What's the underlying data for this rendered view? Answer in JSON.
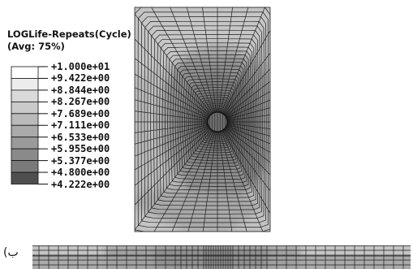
{
  "legend": {
    "title_line1": "LOGLife-Repeats(Cycle)",
    "title_line2": "(Avg: 75%)",
    "values": [
      "+1.000e+01",
      "+9.422e+00",
      "+8.844e+00",
      "+8.267e+00",
      "+7.689e+00",
      "+7.111e+00",
      "+6.533e+00",
      "+5.955e+00",
      "+5.377e+00",
      "+4.800e+00",
      "+4.222e+00"
    ],
    "band_colors": [
      "#ffffff",
      "#ececec",
      "#dadada",
      "#cacaca",
      "#bababa",
      "#aaaaaa",
      "#9a9a9a",
      "#8a8a8a",
      "#7a7a7a",
      "#4f4f4f"
    ]
  },
  "panel_label": "(ب"
}
